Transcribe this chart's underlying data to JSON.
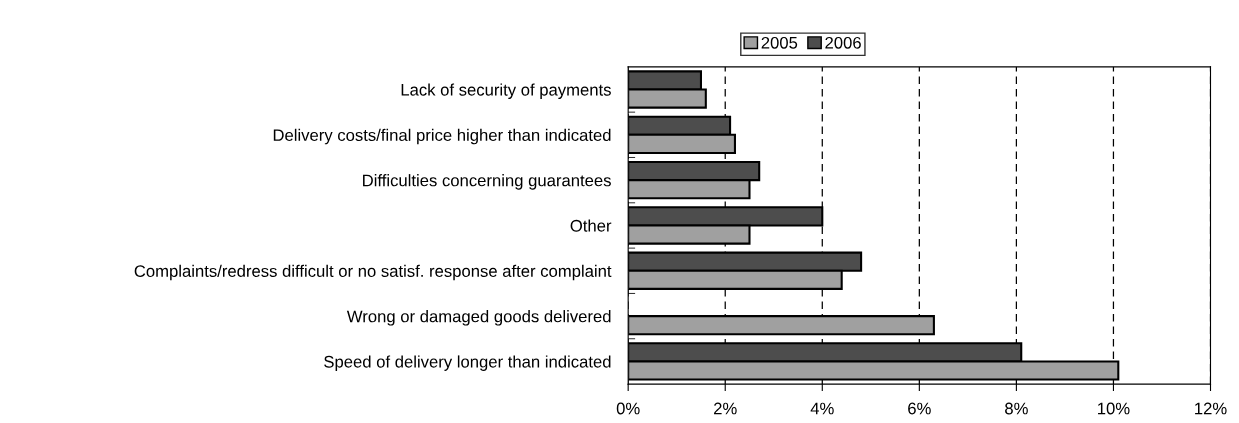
{
  "chart_data": {
    "type": "bar",
    "orientation": "horizontal",
    "categories": [
      "Lack of security of payments",
      "Delivery costs/final price higher than indicated",
      "Difficulties concerning guarantees",
      "Other",
      "Complaints/redress difficult or no satisf. response after complaint",
      "Wrong or damaged goods delivered",
      "Speed of delivery longer than indicated"
    ],
    "series": [
      {
        "name": "2006",
        "color": "#4d4d4d",
        "values": [
          1.5,
          2.1,
          2.7,
          4.0,
          4.8,
          null,
          8.1
        ]
      },
      {
        "name": "2005",
        "color": "#a0a0a0",
        "values": [
          1.6,
          2.2,
          2.5,
          2.5,
          4.4,
          6.3,
          10.1
        ]
      }
    ],
    "xlim": [
      0,
      12
    ],
    "xticks": [
      {
        "value": 0,
        "label": "0%"
      },
      {
        "value": 2,
        "label": "2%"
      },
      {
        "value": 4,
        "label": "4%"
      },
      {
        "value": 6,
        "label": "6%"
      },
      {
        "value": 8,
        "label": "8%"
      },
      {
        "value": 10,
        "label": "10%"
      },
      {
        "value": 12,
        "label": "12%"
      }
    ],
    "grid": "x",
    "legend": "top"
  }
}
